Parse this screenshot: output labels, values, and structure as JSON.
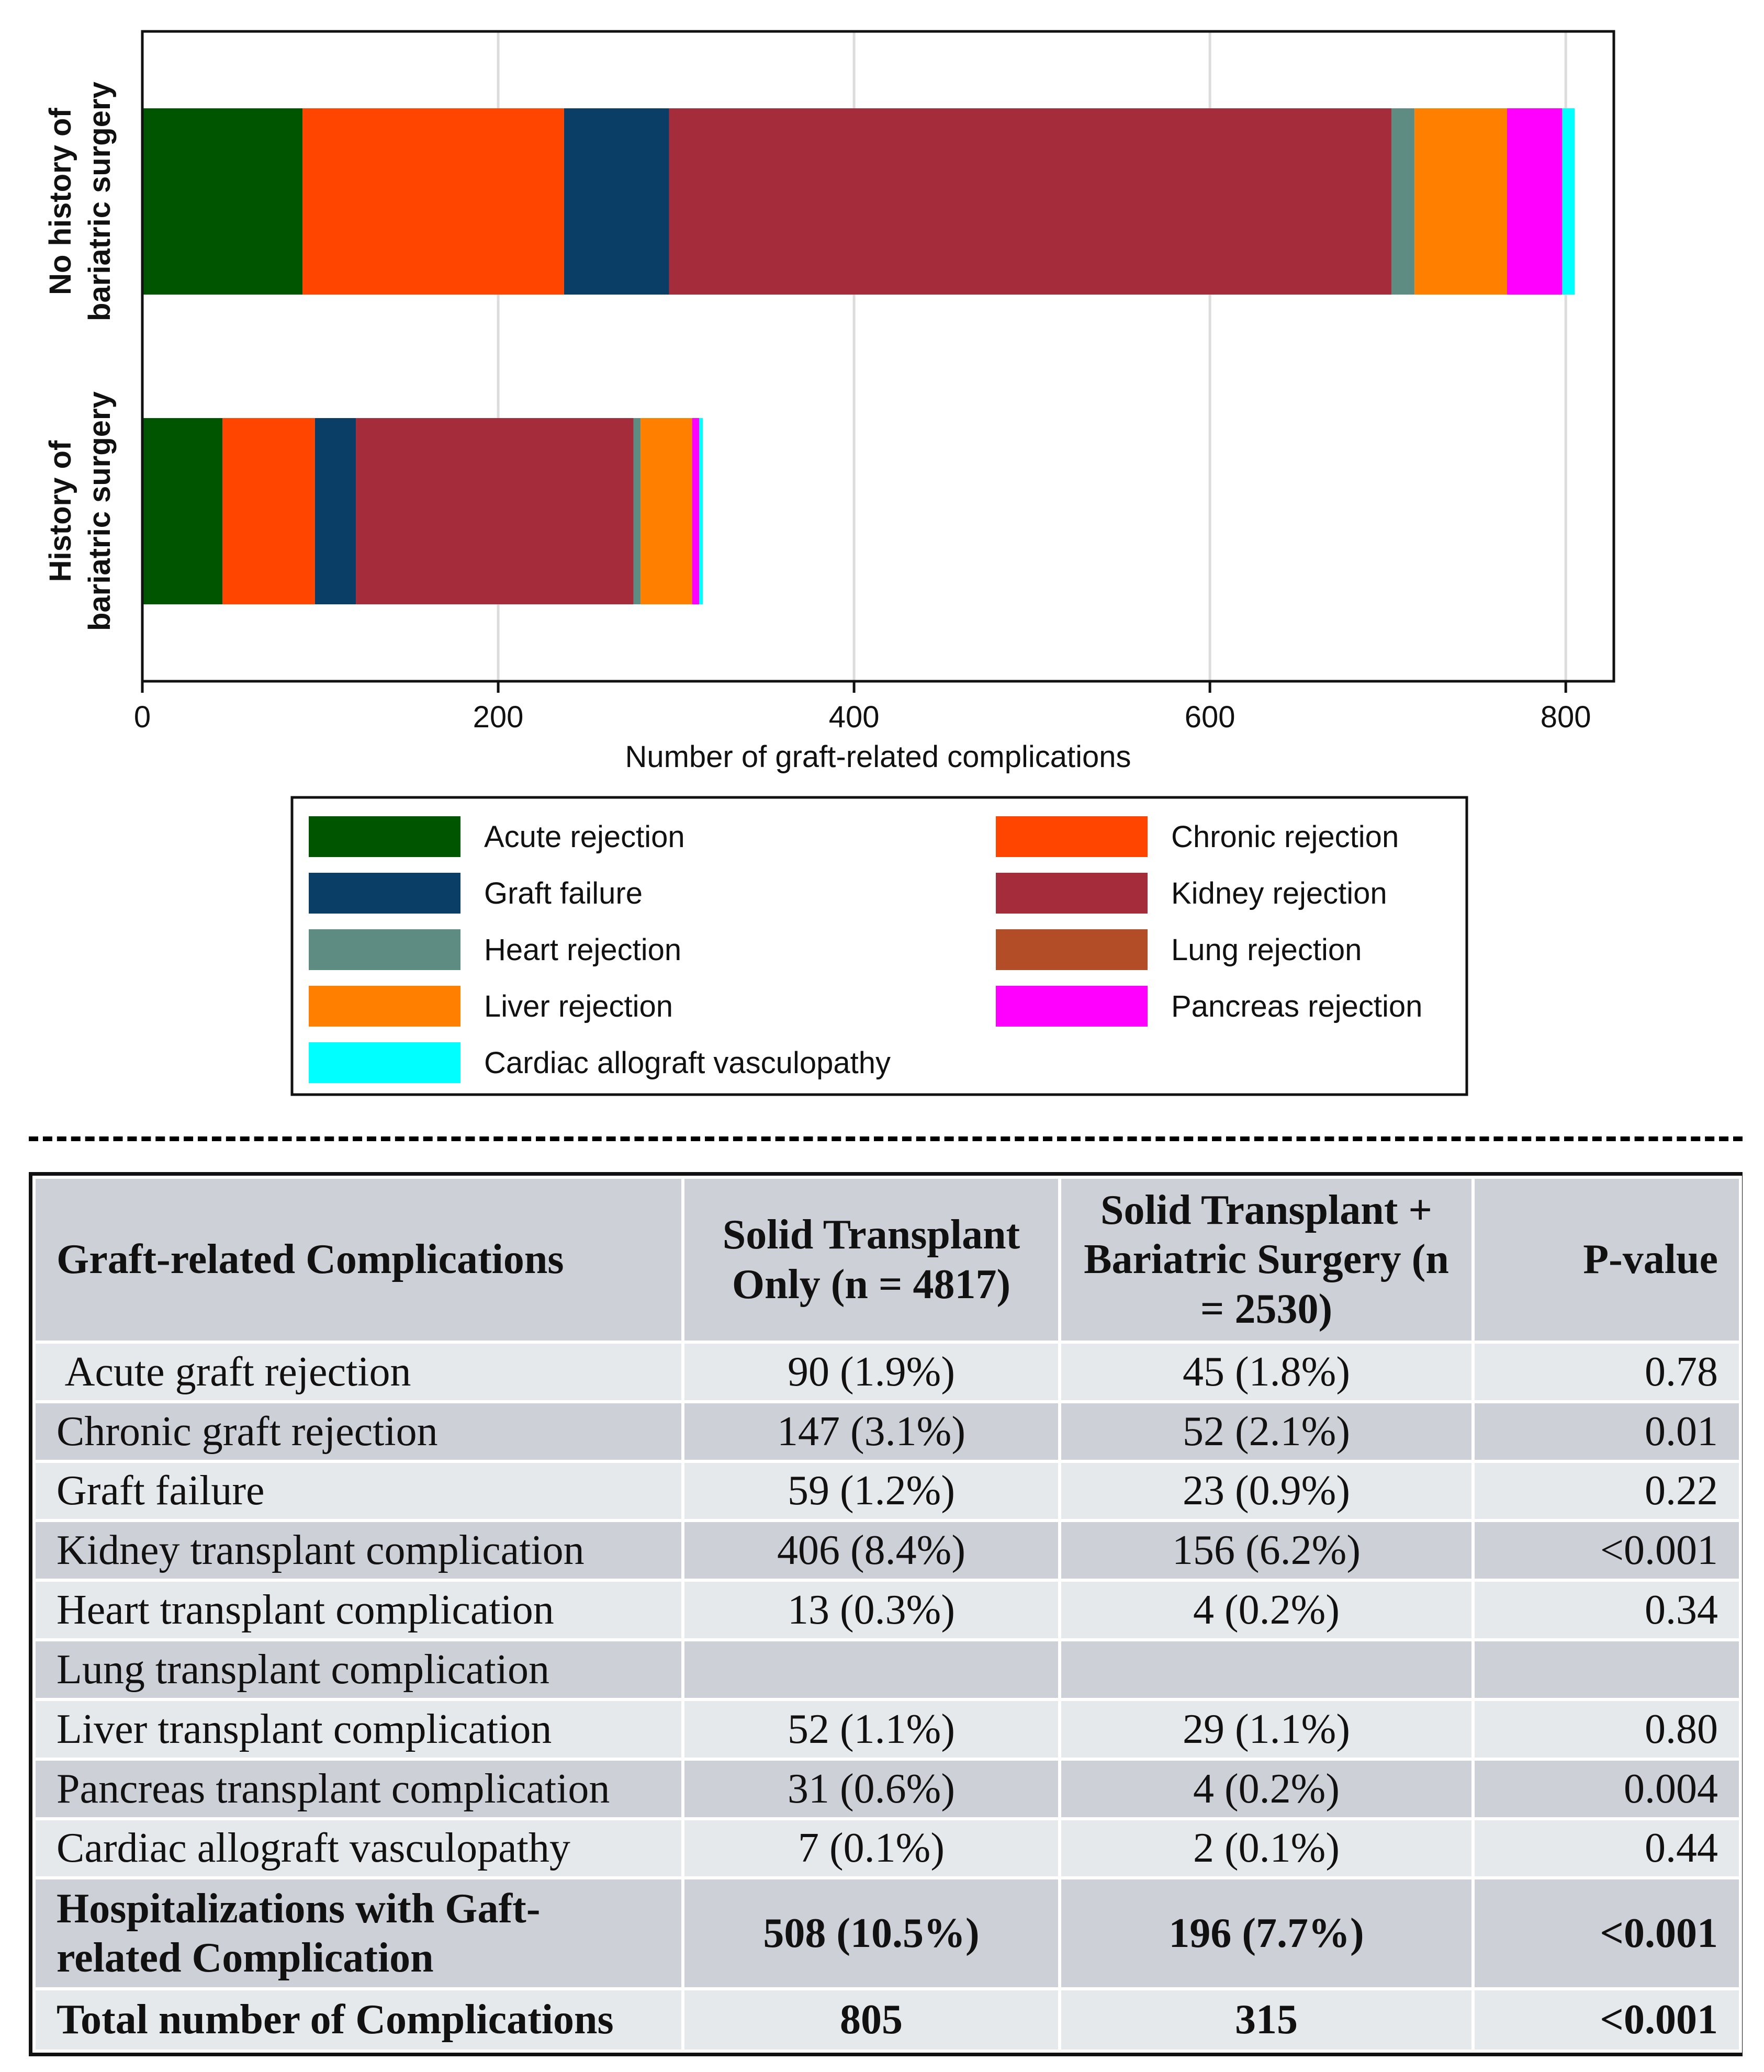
{
  "chart_data": {
    "type": "bar",
    "orientation": "horizontal",
    "stacked": true,
    "categories": [
      "No history of bariatric surgery",
      "History of bariatric surgery"
    ],
    "category_labels": [
      [
        "No history of",
        "bariatric surgery"
      ],
      [
        "History of",
        "bariatric surgery"
      ]
    ],
    "series": [
      {
        "name": "Acute rejection",
        "color": "#005500",
        "values": [
          90,
          45
        ]
      },
      {
        "name": "Chronic rejection",
        "color": "#ff4500",
        "values": [
          147,
          52
        ]
      },
      {
        "name": "Graft failure",
        "color": "#0b3e66",
        "values": [
          59,
          23
        ]
      },
      {
        "name": "Kidney rejection",
        "color": "#a52d3b",
        "values": [
          406,
          156
        ]
      },
      {
        "name": "Heart rejection",
        "color": "#5f8c82",
        "values": [
          13,
          4
        ]
      },
      {
        "name": "Lung rejection",
        "color": "#b34d27",
        "values": [
          0,
          0
        ]
      },
      {
        "name": "Liver rejection",
        "color": "#ff8000",
        "values": [
          52,
          29
        ]
      },
      {
        "name": "Pancreas rejection",
        "color": "#ff00ff",
        "values": [
          31,
          4
        ]
      },
      {
        "name": "Cardiac allograft vasculopathy",
        "color": "#00ffff",
        "values": [
          7,
          2
        ]
      }
    ],
    "xlabel": "Number of graft-related complications",
    "ylabel": "",
    "xlim": [
      0,
      827
    ],
    "xticks": [
      0,
      200,
      400,
      600,
      800
    ],
    "grid": true,
    "legend_placement": "bottom",
    "legend_columns": 2
  },
  "table": {
    "headers": [
      "Graft-related Complications",
      "Solid Transplant Only (n = 4817)",
      "Solid Transplant + Bariatric Surgery (n = 2530)",
      "P-value"
    ],
    "rows": [
      {
        "label": " Acute graft rejection",
        "only": "90 (1.9%)",
        "bariatric": "45 (1.8%)",
        "p": "0.78"
      },
      {
        "label": "Chronic graft rejection",
        "only": "147 (3.1%)",
        "bariatric": "52 (2.1%)",
        "p": "0.01"
      },
      {
        "label": "Graft failure",
        "only": "59 (1.2%)",
        "bariatric": "23 (0.9%)",
        "p": "0.22"
      },
      {
        "label": "Kidney transplant complication",
        "only": "406 (8.4%)",
        "bariatric": "156 (6.2%)",
        "p": "<0.001"
      },
      {
        "label": "Heart transplant complication",
        "only": "13 (0.3%)",
        "bariatric": "4 (0.2%)",
        "p": "0.34"
      },
      {
        "label": "Lung transplant complication",
        "only": "",
        "bariatric": "",
        "p": ""
      },
      {
        "label": "Liver transplant complication",
        "only": "52 (1.1%)",
        "bariatric": "29 (1.1%)",
        "p": "0.80"
      },
      {
        "label": "Pancreas transplant complication",
        "only": "31 (0.6%)",
        "bariatric": "4 (0.2%)",
        "p": "0.004"
      },
      {
        "label": "Cardiac allograft vasculopathy",
        "only": "7 (0.1%)",
        "bariatric": "2 (0.1%)",
        "p": "0.44"
      }
    ],
    "summary_rows": [
      {
        "label": "Hospitalizations with Gaft-related Complication",
        "only": "508 (10.5%)",
        "bariatric": "196 (7.7%)",
        "p": "<0.001"
      },
      {
        "label": "Total number of Complications",
        "only": "805",
        "bariatric": "315",
        "p": "<0.001"
      }
    ]
  }
}
